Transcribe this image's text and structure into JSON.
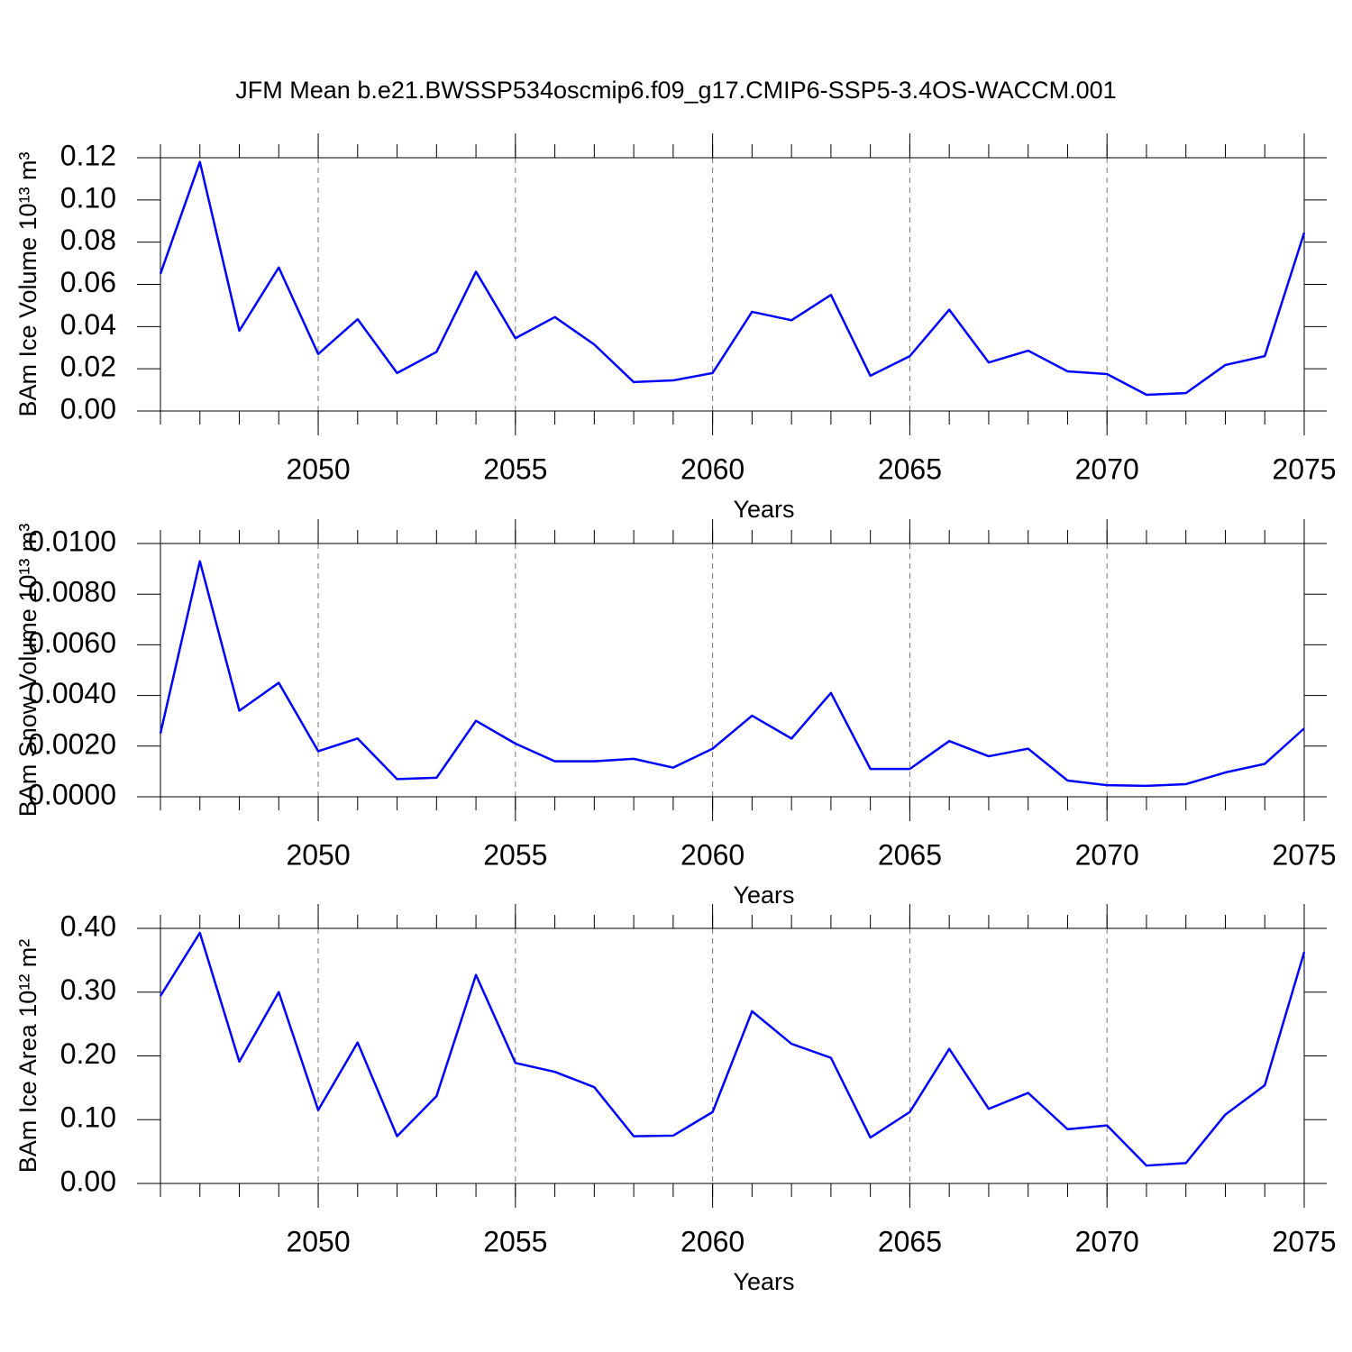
{
  "title": "JFM Mean b.e21.BWSSP534oscmip6.f09_g17.CMIP6-SSP5-3.4OS-WACCM.001",
  "chart_data": [
    {
      "type": "line",
      "ylabel": "BAm Ice Volume 10¹³ m³",
      "xlabel": "Years",
      "x": [
        2046,
        2047,
        2048,
        2049,
        2050,
        2051,
        2052,
        2053,
        2054,
        2055,
        2056,
        2057,
        2058,
        2059,
        2060,
        2061,
        2062,
        2063,
        2064,
        2065,
        2066,
        2067,
        2068,
        2069,
        2070,
        2071,
        2072,
        2073,
        2074,
        2075
      ],
      "series": [
        {
          "color": "#0000ff",
          "values": [
            0.065,
            0.118,
            0.038,
            0.068,
            0.027,
            0.0435,
            0.018,
            0.028,
            0.066,
            0.0345,
            0.0445,
            0.0315,
            0.0137,
            0.0145,
            0.018,
            0.047,
            0.043,
            0.055,
            0.0167,
            0.026,
            0.048,
            0.023,
            0.0286,
            0.0188,
            0.0175,
            0.0077,
            0.0085,
            0.0218,
            0.026,
            0.0845
          ]
        }
      ],
      "xlim": [
        2046,
        2075
      ],
      "xticks": [
        2050,
        2055,
        2060,
        2065,
        2070,
        2075
      ],
      "ylim": [
        0,
        0.12
      ],
      "yticks": [
        {
          "value": 0,
          "label": "0.00"
        },
        0.02,
        0.04,
        0.06,
        0.08,
        {
          "value": 0.1,
          "label": "0.10"
        },
        0.12
      ],
      "grid": true
    },
    {
      "type": "line",
      "ylabel": "BAm Snow Volume 10¹³ m³",
      "xlabel": "Years",
      "x": [
        2046,
        2047,
        2048,
        2049,
        2050,
        2051,
        2052,
        2053,
        2054,
        2055,
        2056,
        2057,
        2058,
        2059,
        2060,
        2061,
        2062,
        2063,
        2064,
        2065,
        2066,
        2067,
        2068,
        2069,
        2070,
        2071,
        2072,
        2073,
        2074,
        2075
      ],
      "series": [
        {
          "color": "#0000ff",
          "values": [
            0.0025,
            0.0093,
            0.0034,
            0.0045,
            0.0018,
            0.0023,
            0.0007,
            0.00075,
            0.003,
            0.0021,
            0.0014,
            0.0014,
            0.0015,
            0.00115,
            0.0019,
            0.0032,
            0.0023,
            0.0041,
            0.0011,
            0.0011,
            0.0022,
            0.0016,
            0.0019,
            0.00064,
            0.00046,
            0.00043,
            0.0005,
            0.00096,
            0.0013,
            0.0027
          ]
        }
      ],
      "xlim": [
        2046,
        2075
      ],
      "xticks": [
        2050,
        2055,
        2060,
        2065,
        2070,
        2075
      ],
      "ylim": [
        0,
        0.01
      ],
      "yticks": [
        {
          "value": 0,
          "label": "0.0000"
        },
        {
          "value": 0.002,
          "label": "0.0020"
        },
        {
          "value": 0.004,
          "label": "0.0040"
        },
        {
          "value": 0.006,
          "label": "0.0060"
        },
        {
          "value": 0.008,
          "label": "0.0080"
        },
        {
          "value": 0.01,
          "label": "0.0100"
        }
      ],
      "grid": true
    },
    {
      "type": "line",
      "ylabel": "BAm Ice Area 10¹² m²",
      "xlabel": "Years",
      "x": [
        2046,
        2047,
        2048,
        2049,
        2050,
        2051,
        2052,
        2053,
        2054,
        2055,
        2056,
        2057,
        2058,
        2059,
        2060,
        2061,
        2062,
        2063,
        2064,
        2065,
        2066,
        2067,
        2068,
        2069,
        2070,
        2071,
        2072,
        2073,
        2074,
        2075
      ],
      "series": [
        {
          "color": "#0000ff",
          "values": [
            0.294,
            0.393,
            0.191,
            0.3,
            0.115,
            0.221,
            0.074,
            0.137,
            0.327,
            0.189,
            0.175,
            0.151,
            0.074,
            0.075,
            0.112,
            0.27,
            0.219,
            0.197,
            0.072,
            0.112,
            0.211,
            0.117,
            0.142,
            0.085,
            0.091,
            0.028,
            0.032,
            0.108,
            0.154,
            0.363
          ]
        }
      ],
      "xlim": [
        2046,
        2075
      ],
      "xticks": [
        2050,
        2055,
        2060,
        2065,
        2070,
        2075
      ],
      "ylim": [
        0,
        0.4
      ],
      "yticks": [
        {
          "value": 0,
          "label": "0.00"
        },
        {
          "value": 0.1,
          "label": "0.10"
        },
        {
          "value": 0.2,
          "label": "0.20"
        },
        {
          "value": 0.3,
          "label": "0.30"
        },
        {
          "value": 0.4,
          "label": "0.40"
        }
      ],
      "grid": true
    }
  ]
}
